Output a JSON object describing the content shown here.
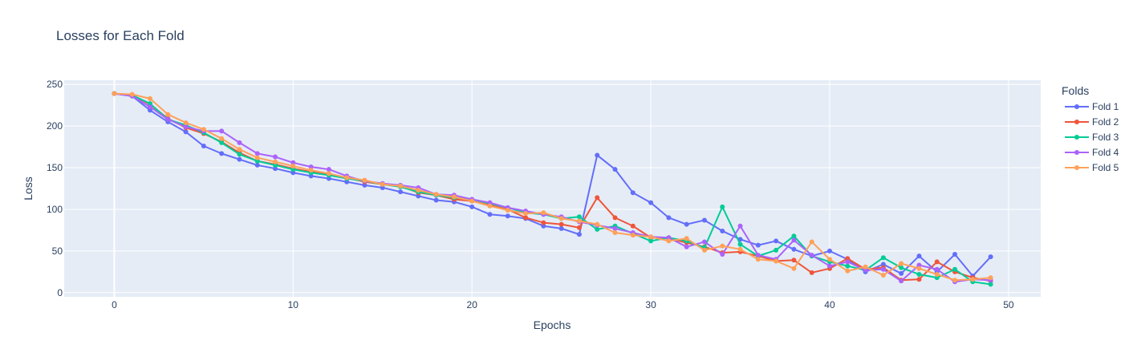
{
  "chart_data": {
    "type": "line",
    "title": "Losses for Each Fold",
    "xlabel": "Epochs",
    "ylabel": "Loss",
    "xlim": [
      -2.8,
      51.8
    ],
    "ylim": [
      -5,
      255
    ],
    "xticks": [
      0,
      10,
      20,
      30,
      40,
      50
    ],
    "yticks": [
      0,
      50,
      100,
      150,
      200,
      250
    ],
    "grid": true,
    "legend": {
      "title": "Folds",
      "position": "right"
    },
    "x": [
      0,
      1,
      2,
      3,
      4,
      5,
      6,
      7,
      8,
      9,
      10,
      11,
      12,
      13,
      14,
      15,
      16,
      17,
      18,
      19,
      20,
      21,
      22,
      23,
      24,
      25,
      26,
      27,
      28,
      29,
      30,
      31,
      32,
      33,
      34,
      35,
      36,
      37,
      38,
      39,
      40,
      41,
      42,
      43,
      44,
      45,
      46,
      47,
      48,
      49
    ],
    "series": [
      {
        "name": "Fold 1",
        "color": "#636efa",
        "values": [
          239,
          236,
          219,
          205,
          193,
          176,
          167,
          160,
          153,
          149,
          144,
          140,
          137,
          133,
          129,
          126,
          121,
          116,
          111,
          109,
          103,
          94,
          92,
          89,
          80,
          77,
          70,
          165,
          148,
          120,
          108,
          90,
          82,
          87,
          74,
          64,
          57,
          62,
          52,
          44,
          50,
          40,
          25,
          34,
          23,
          44,
          25,
          46,
          20,
          43
        ]
      },
      {
        "name": "Fold 2",
        "color": "#ef553b",
        "values": [
          239,
          237,
          226,
          209,
          198,
          191,
          181,
          168,
          158,
          154,
          149,
          145,
          142,
          138,
          133,
          130,
          128,
          120,
          117,
          112,
          110,
          105,
          100,
          90,
          84,
          82,
          78,
          114,
          90,
          80,
          66,
          65,
          60,
          55,
          48,
          49,
          44,
          38,
          39,
          24,
          29,
          41,
          28,
          30,
          15,
          16,
          37,
          25,
          18,
          14
        ]
      },
      {
        "name": "Fold 3",
        "color": "#00cc96",
        "values": [
          239,
          237,
          227,
          208,
          201,
          192,
          180,
          166,
          158,
          153,
          148,
          144,
          141,
          137,
          134,
          130,
          127,
          121,
          117,
          114,
          112,
          107,
          102,
          96,
          94,
          89,
          91,
          76,
          80,
          71,
          62,
          66,
          62,
          54,
          103,
          58,
          44,
          51,
          68,
          44,
          37,
          32,
          27,
          42,
          30,
          22,
          18,
          28,
          13,
          10
        ]
      },
      {
        "name": "Fold 4",
        "color": "#ab63fa",
        "values": [
          239,
          236,
          223,
          208,
          199,
          194,
          194,
          180,
          167,
          163,
          156,
          151,
          148,
          140,
          134,
          131,
          129,
          126,
          118,
          117,
          112,
          108,
          102,
          98,
          94,
          91,
          85,
          81,
          77,
          72,
          67,
          66,
          55,
          61,
          46,
          80,
          45,
          40,
          63,
          45,
          32,
          37,
          27,
          28,
          14,
          33,
          28,
          13,
          16,
          15
        ]
      },
      {
        "name": "Fold 5",
        "color": "#ffa15a",
        "values": [
          239,
          238,
          233,
          214,
          204,
          196,
          185,
          172,
          162,
          157,
          152,
          147,
          143,
          138,
          135,
          130,
          128,
          123,
          118,
          115,
          110,
          104,
          99,
          95,
          96,
          89,
          86,
          82,
          72,
          69,
          67,
          62,
          65,
          51,
          56,
          52,
          40,
          38,
          29,
          61,
          40,
          26,
          31,
          21,
          35,
          29,
          22,
          15,
          16,
          18
        ]
      }
    ]
  }
}
